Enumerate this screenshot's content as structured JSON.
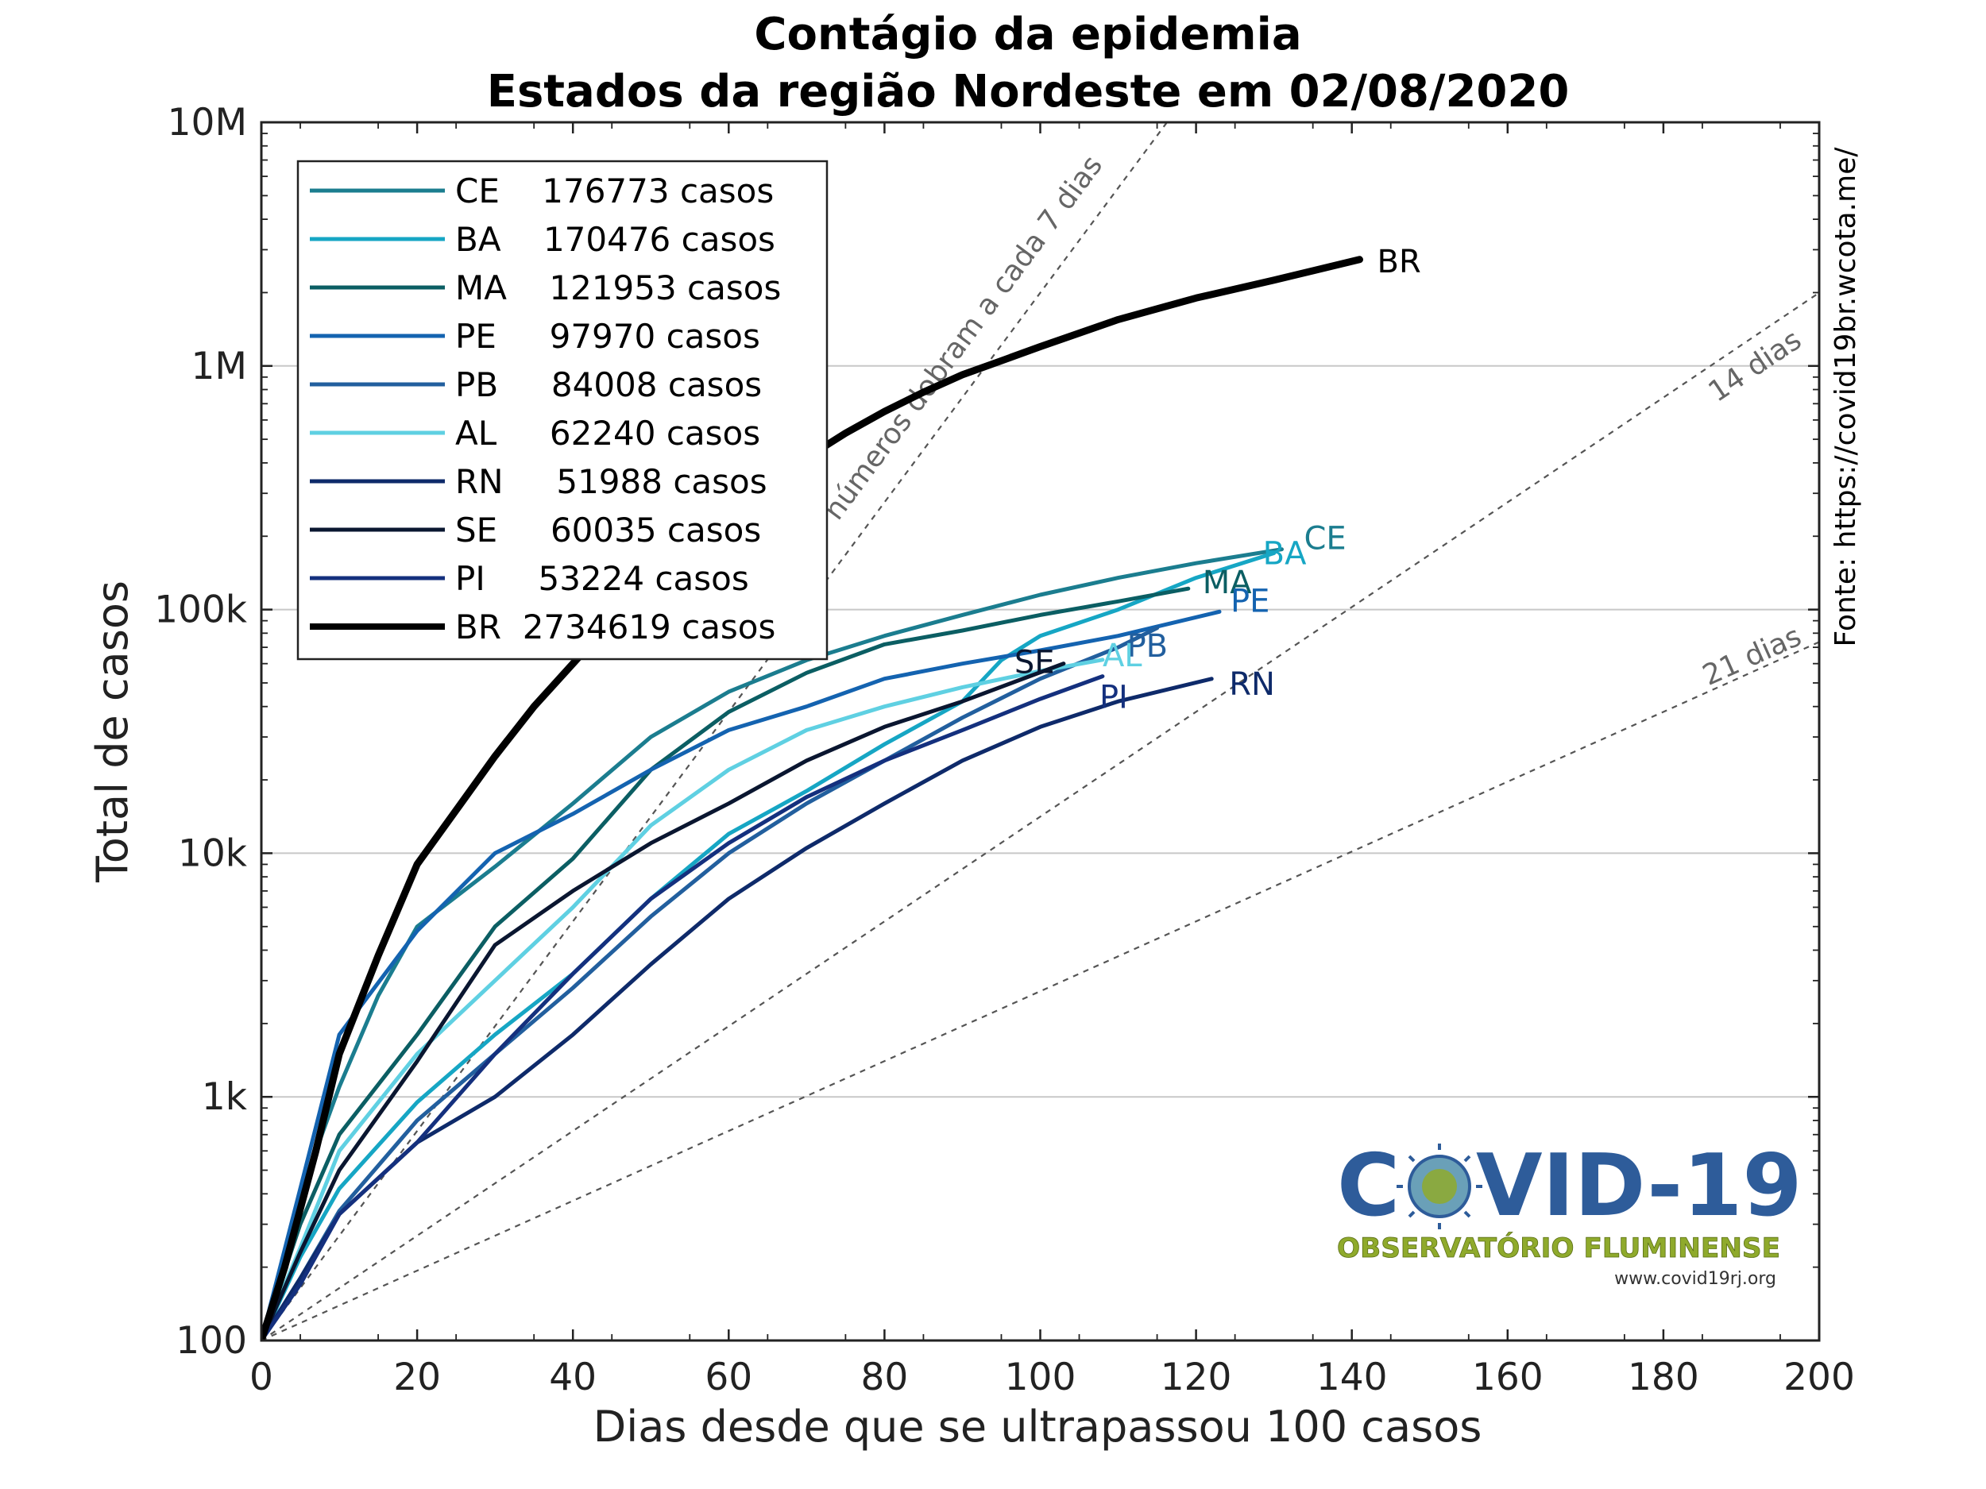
{
  "chart_data": {
    "type": "line",
    "title": "Contágio da epidemia",
    "subtitle": "Estados da região Nordeste em 02/08/2020",
    "xlabel": "Dias desde que se ultrapassou 100 casos",
    "ylabel": "Total de casos",
    "xlim": [
      0,
      200
    ],
    "ylim": [
      100,
      10000000
    ],
    "yscale": "log",
    "x_ticks": [
      "0",
      "20",
      "40",
      "60",
      "80",
      "100",
      "120",
      "140",
      "160",
      "180",
      "200"
    ],
    "y_ticks": [
      "100",
      "1k",
      "10k",
      "100k",
      "1M",
      "10M"
    ],
    "grid": "horizontal",
    "legend_placement": "top-left",
    "series": [
      {
        "name": "CE",
        "legend": "CE    176773 casos",
        "label": "CE",
        "color": "#1b7d8f",
        "days": 131,
        "final": 176773,
        "points": [
          [
            0,
            100
          ],
          [
            5,
            400
          ],
          [
            10,
            1100
          ],
          [
            15,
            2600
          ],
          [
            20,
            5000
          ],
          [
            30,
            8800
          ],
          [
            40,
            16000
          ],
          [
            50,
            30000
          ],
          [
            60,
            46000
          ],
          [
            70,
            62000
          ],
          [
            80,
            78000
          ],
          [
            90,
            95000
          ],
          [
            100,
            115000
          ],
          [
            110,
            135000
          ],
          [
            120,
            155000
          ],
          [
            131,
            176773
          ]
        ]
      },
      {
        "name": "BA",
        "legend": "BA    170476 casos",
        "label": "BA",
        "color": "#16a6c4",
        "days": 130,
        "final": 170476,
        "points": [
          [
            0,
            100
          ],
          [
            5,
            220
          ],
          [
            10,
            420
          ],
          [
            20,
            950
          ],
          [
            30,
            1800
          ],
          [
            40,
            3200
          ],
          [
            50,
            6500
          ],
          [
            60,
            12000
          ],
          [
            70,
            18000
          ],
          [
            80,
            28000
          ],
          [
            90,
            42000
          ],
          [
            95,
            62000
          ],
          [
            100,
            78000
          ],
          [
            110,
            100000
          ],
          [
            120,
            135000
          ],
          [
            130,
            170476
          ]
        ]
      },
      {
        "name": "MA",
        "legend": "MA    121953 casos",
        "label": "MA",
        "color": "#0b5e63",
        "days": 119,
        "final": 121953,
        "points": [
          [
            0,
            100
          ],
          [
            5,
            300
          ],
          [
            10,
            700
          ],
          [
            20,
            1800
          ],
          [
            30,
            5000
          ],
          [
            40,
            9500
          ],
          [
            50,
            22000
          ],
          [
            60,
            38000
          ],
          [
            70,
            55000
          ],
          [
            80,
            72000
          ],
          [
            90,
            82000
          ],
          [
            100,
            95000
          ],
          [
            110,
            108000
          ],
          [
            119,
            121953
          ]
        ]
      },
      {
        "name": "PE",
        "legend": "PE     97970 casos",
        "label": "PE",
        "color": "#1463b0",
        "days": 123,
        "final": 97970,
        "points": [
          [
            0,
            100
          ],
          [
            5,
            420
          ],
          [
            10,
            1800
          ],
          [
            20,
            4800
          ],
          [
            30,
            10000
          ],
          [
            40,
            14500
          ],
          [
            50,
            22000
          ],
          [
            60,
            32000
          ],
          [
            70,
            40000
          ],
          [
            80,
            52000
          ],
          [
            90,
            60000
          ],
          [
            100,
            68000
          ],
          [
            110,
            78000
          ],
          [
            123,
            97970
          ]
        ]
      },
      {
        "name": "PB",
        "legend": "PB     84008 casos",
        "label": "PB",
        "color": "#225f9e",
        "days": 115,
        "final": 84008,
        "points": [
          [
            0,
            100
          ],
          [
            5,
            180
          ],
          [
            10,
            340
          ],
          [
            20,
            800
          ],
          [
            30,
            1500
          ],
          [
            40,
            2800
          ],
          [
            50,
            5500
          ],
          [
            60,
            10000
          ],
          [
            70,
            16000
          ],
          [
            80,
            24000
          ],
          [
            90,
            36000
          ],
          [
            100,
            52000
          ],
          [
            110,
            70000
          ],
          [
            115,
            84008
          ]
        ]
      },
      {
        "name": "AL",
        "legend": "AL     62240 casos",
        "label": "AL",
        "color": "#5fd0e2",
        "days": 108,
        "final": 62240,
        "points": [
          [
            0,
            100
          ],
          [
            5,
            240
          ],
          [
            10,
            600
          ],
          [
            20,
            1500
          ],
          [
            30,
            3000
          ],
          [
            40,
            6000
          ],
          [
            50,
            13000
          ],
          [
            60,
            22000
          ],
          [
            70,
            32000
          ],
          [
            80,
            40000
          ],
          [
            90,
            48000
          ],
          [
            100,
            56000
          ],
          [
            108,
            62240
          ]
        ]
      },
      {
        "name": "RN",
        "legend": "RN     51988 casos",
        "label": "RN",
        "color": "#0e2a6a",
        "days": 122,
        "final": 51988,
        "points": [
          [
            0,
            100
          ],
          [
            5,
            180
          ],
          [
            10,
            330
          ],
          [
            20,
            650
          ],
          [
            30,
            1000
          ],
          [
            40,
            1800
          ],
          [
            50,
            3500
          ],
          [
            60,
            6500
          ],
          [
            70,
            10500
          ],
          [
            80,
            16000
          ],
          [
            90,
            24000
          ],
          [
            100,
            33000
          ],
          [
            110,
            42000
          ],
          [
            122,
            51988
          ]
        ]
      },
      {
        "name": "SE",
        "legend": "SE     60035 casos",
        "label": "SE",
        "color": "#0a1630",
        "days": 103,
        "final": 60035,
        "points": [
          [
            0,
            100
          ],
          [
            5,
            230
          ],
          [
            10,
            500
          ],
          [
            20,
            1400
          ],
          [
            30,
            4200
          ],
          [
            40,
            7000
          ],
          [
            50,
            11000
          ],
          [
            60,
            16000
          ],
          [
            70,
            24000
          ],
          [
            80,
            33000
          ],
          [
            90,
            42000
          ],
          [
            103,
            60035
          ]
        ]
      },
      {
        "name": "PI",
        "legend": "PI     53224 casos",
        "label": "PI",
        "color": "#14307e",
        "days": 108,
        "final": 53224,
        "points": [
          [
            0,
            100
          ],
          [
            5,
            170
          ],
          [
            10,
            330
          ],
          [
            20,
            650
          ],
          [
            30,
            1500
          ],
          [
            40,
            3200
          ],
          [
            50,
            6500
          ],
          [
            60,
            11000
          ],
          [
            70,
            17000
          ],
          [
            80,
            24000
          ],
          [
            90,
            32000
          ],
          [
            100,
            43000
          ],
          [
            108,
            53224
          ]
        ]
      },
      {
        "name": "BR",
        "legend": "BR  2734619 casos",
        "label": "BR",
        "color": "#000000",
        "days": 141,
        "final": 2734619,
        "points": [
          [
            0,
            100
          ],
          [
            3,
            200
          ],
          [
            7,
            600
          ],
          [
            10,
            1500
          ],
          [
            15,
            3800
          ],
          [
            20,
            9000
          ],
          [
            25,
            15000
          ],
          [
            30,
            25000
          ],
          [
            35,
            40000
          ],
          [
            40,
            60000
          ],
          [
            45,
            90000
          ],
          [
            50,
            130000
          ],
          [
            55,
            180000
          ],
          [
            60,
            250000
          ],
          [
            65,
            330000
          ],
          [
            70,
            420000
          ],
          [
            75,
            530000
          ],
          [
            80,
            650000
          ],
          [
            85,
            780000
          ],
          [
            90,
            920000
          ],
          [
            95,
            1050000
          ],
          [
            100,
            1200000
          ],
          [
            110,
            1550000
          ],
          [
            120,
            1900000
          ],
          [
            130,
            2250000
          ],
          [
            141,
            2734619
          ]
        ]
      }
    ],
    "guides": [
      {
        "label": "números dobram a cada 7 dias",
        "doubling_days": 7
      },
      {
        "label": "14 dias",
        "doubling_days": 14
      },
      {
        "label": "21 dias",
        "doubling_days": 21
      }
    ]
  },
  "source": "Fonte: https://covid19br.wcota.me/",
  "logo": {
    "text_left": "C",
    "text_right": "VID-19",
    "subtitle": "OBSERVATÓRIO FLUMINENSE",
    "url": "www.covid19rj.org"
  }
}
